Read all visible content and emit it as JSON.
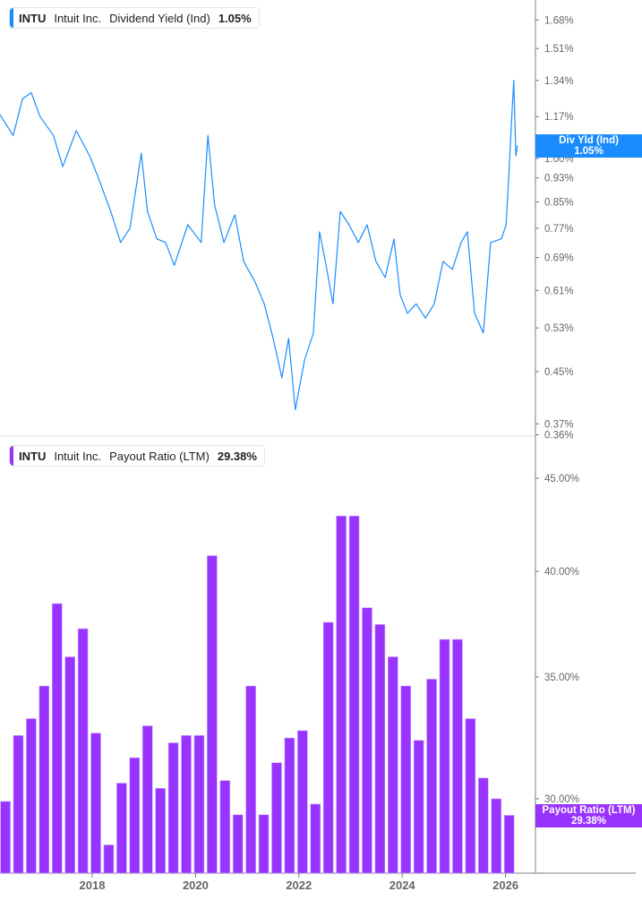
{
  "chart_data": [
    {
      "type": "line",
      "legend": {
        "ticker": "INTU",
        "company": "Intuit Inc.",
        "metric": "Dividend Yield (Ind)",
        "value": "1.05%"
      },
      "color": "#1a8cff",
      "y_scale": "log",
      "ylim": [
        0.36,
        1.8
      ],
      "y_ticks": [
        "1.68%",
        "1.51%",
        "1.34%",
        "1.17%",
        "1.00%",
        "0.93%",
        "0.85%",
        "0.77%",
        "0.69%",
        "0.61%",
        "0.53%",
        "0.45%",
        "0.37%",
        "0.36%"
      ],
      "y_tick_values": [
        1.68,
        1.51,
        1.34,
        1.17,
        1.0,
        0.93,
        0.85,
        0.77,
        0.69,
        0.61,
        0.53,
        0.45,
        0.37,
        0.36
      ],
      "last_label": {
        "name": "Div Yld (Ind)",
        "value": "1.05%"
      },
      "x": [
        2016.21,
        2016.47,
        2016.65,
        2016.82,
        2016.99,
        2017.25,
        2017.43,
        2017.69,
        2017.95,
        2018.12,
        2018.38,
        2018.55,
        2018.73,
        2018.95,
        2019.07,
        2019.25,
        2019.42,
        2019.59,
        2019.85,
        2020.11,
        2020.24,
        2020.37,
        2020.55,
        2020.76,
        2020.93,
        2021.15,
        2021.33,
        2021.5,
        2021.67,
        2021.8,
        2021.93,
        2022.11,
        2022.28,
        2022.4,
        2022.54,
        2022.66,
        2022.8,
        2022.97,
        2023.15,
        2023.32,
        2023.49,
        2023.67,
        2023.84,
        2023.96,
        2024.1,
        2024.27,
        2024.45,
        2024.62,
        2024.79,
        2024.97,
        2025.14,
        2025.26,
        2025.4,
        2025.57,
        2025.71,
        2025.92,
        2026.01,
        2026.06,
        2026.13,
        2026.16,
        2026.2,
        2026.23
      ],
      "y": [
        1.18,
        1.09,
        1.25,
        1.28,
        1.17,
        1.09,
        0.97,
        1.11,
        1.01,
        0.93,
        0.81,
        0.73,
        0.77,
        1.02,
        0.82,
        0.74,
        0.73,
        0.67,
        0.78,
        0.73,
        1.09,
        0.84,
        0.73,
        0.81,
        0.68,
        0.63,
        0.58,
        0.51,
        0.44,
        0.51,
        0.39,
        0.47,
        0.52,
        0.76,
        0.66,
        0.58,
        0.82,
        0.78,
        0.73,
        0.78,
        0.68,
        0.64,
        0.74,
        0.6,
        0.56,
        0.58,
        0.55,
        0.58,
        0.68,
        0.66,
        0.73,
        0.76,
        0.56,
        0.52,
        0.73,
        0.74,
        0.78,
        0.93,
        1.21,
        1.34,
        1.01,
        1.05
      ]
    },
    {
      "type": "bar",
      "legend": {
        "ticker": "INTU",
        "company": "Intuit Inc.",
        "metric": "Payout Ratio (LTM)",
        "value": "29.38%"
      },
      "color": "#9933ff",
      "y_scale": "log",
      "ylim": [
        27.3,
        47
      ],
      "y_ticks": [
        "45.00%",
        "40.00%",
        "35.00%",
        "30.00%"
      ],
      "y_tick_values": [
        45,
        40,
        35,
        30
      ],
      "last_label": {
        "name": "Payout Ratio (LTM)",
        "value": "29.38%"
      },
      "x_ticks": [
        "2018",
        "2020",
        "2022",
        "2024",
        "2026"
      ],
      "x_tick_values": [
        2018,
        2020,
        2022,
        2024,
        2026
      ],
      "x": [
        2016.32,
        2016.57,
        2016.82,
        2017.07,
        2017.32,
        2017.57,
        2017.82,
        2018.07,
        2018.32,
        2018.57,
        2018.82,
        2019.07,
        2019.32,
        2019.57,
        2019.82,
        2020.07,
        2020.32,
        2020.57,
        2020.82,
        2021.07,
        2021.32,
        2021.57,
        2021.82,
        2022.07,
        2022.32,
        2022.57,
        2022.82,
        2023.07,
        2023.32,
        2023.57,
        2023.82,
        2024.07,
        2024.32,
        2024.57,
        2024.82,
        2025.07,
        2025.32,
        2025.57,
        2025.82,
        2026.07
      ],
      "values": [
        29.9,
        32.5,
        33.2,
        34.6,
        38.4,
        35.9,
        37.2,
        32.6,
        28.3,
        30.6,
        31.6,
        32.9,
        30.4,
        32.2,
        32.5,
        32.5,
        40.8,
        30.7,
        29.4,
        34.6,
        29.4,
        31.4,
        32.4,
        32.7,
        29.8,
        37.5,
        42.9,
        42.9,
        38.2,
        37.4,
        35.9,
        34.6,
        32.3,
        34.9,
        36.7,
        36.7,
        33.2,
        30.8,
        30.0,
        29.38
      ]
    }
  ]
}
